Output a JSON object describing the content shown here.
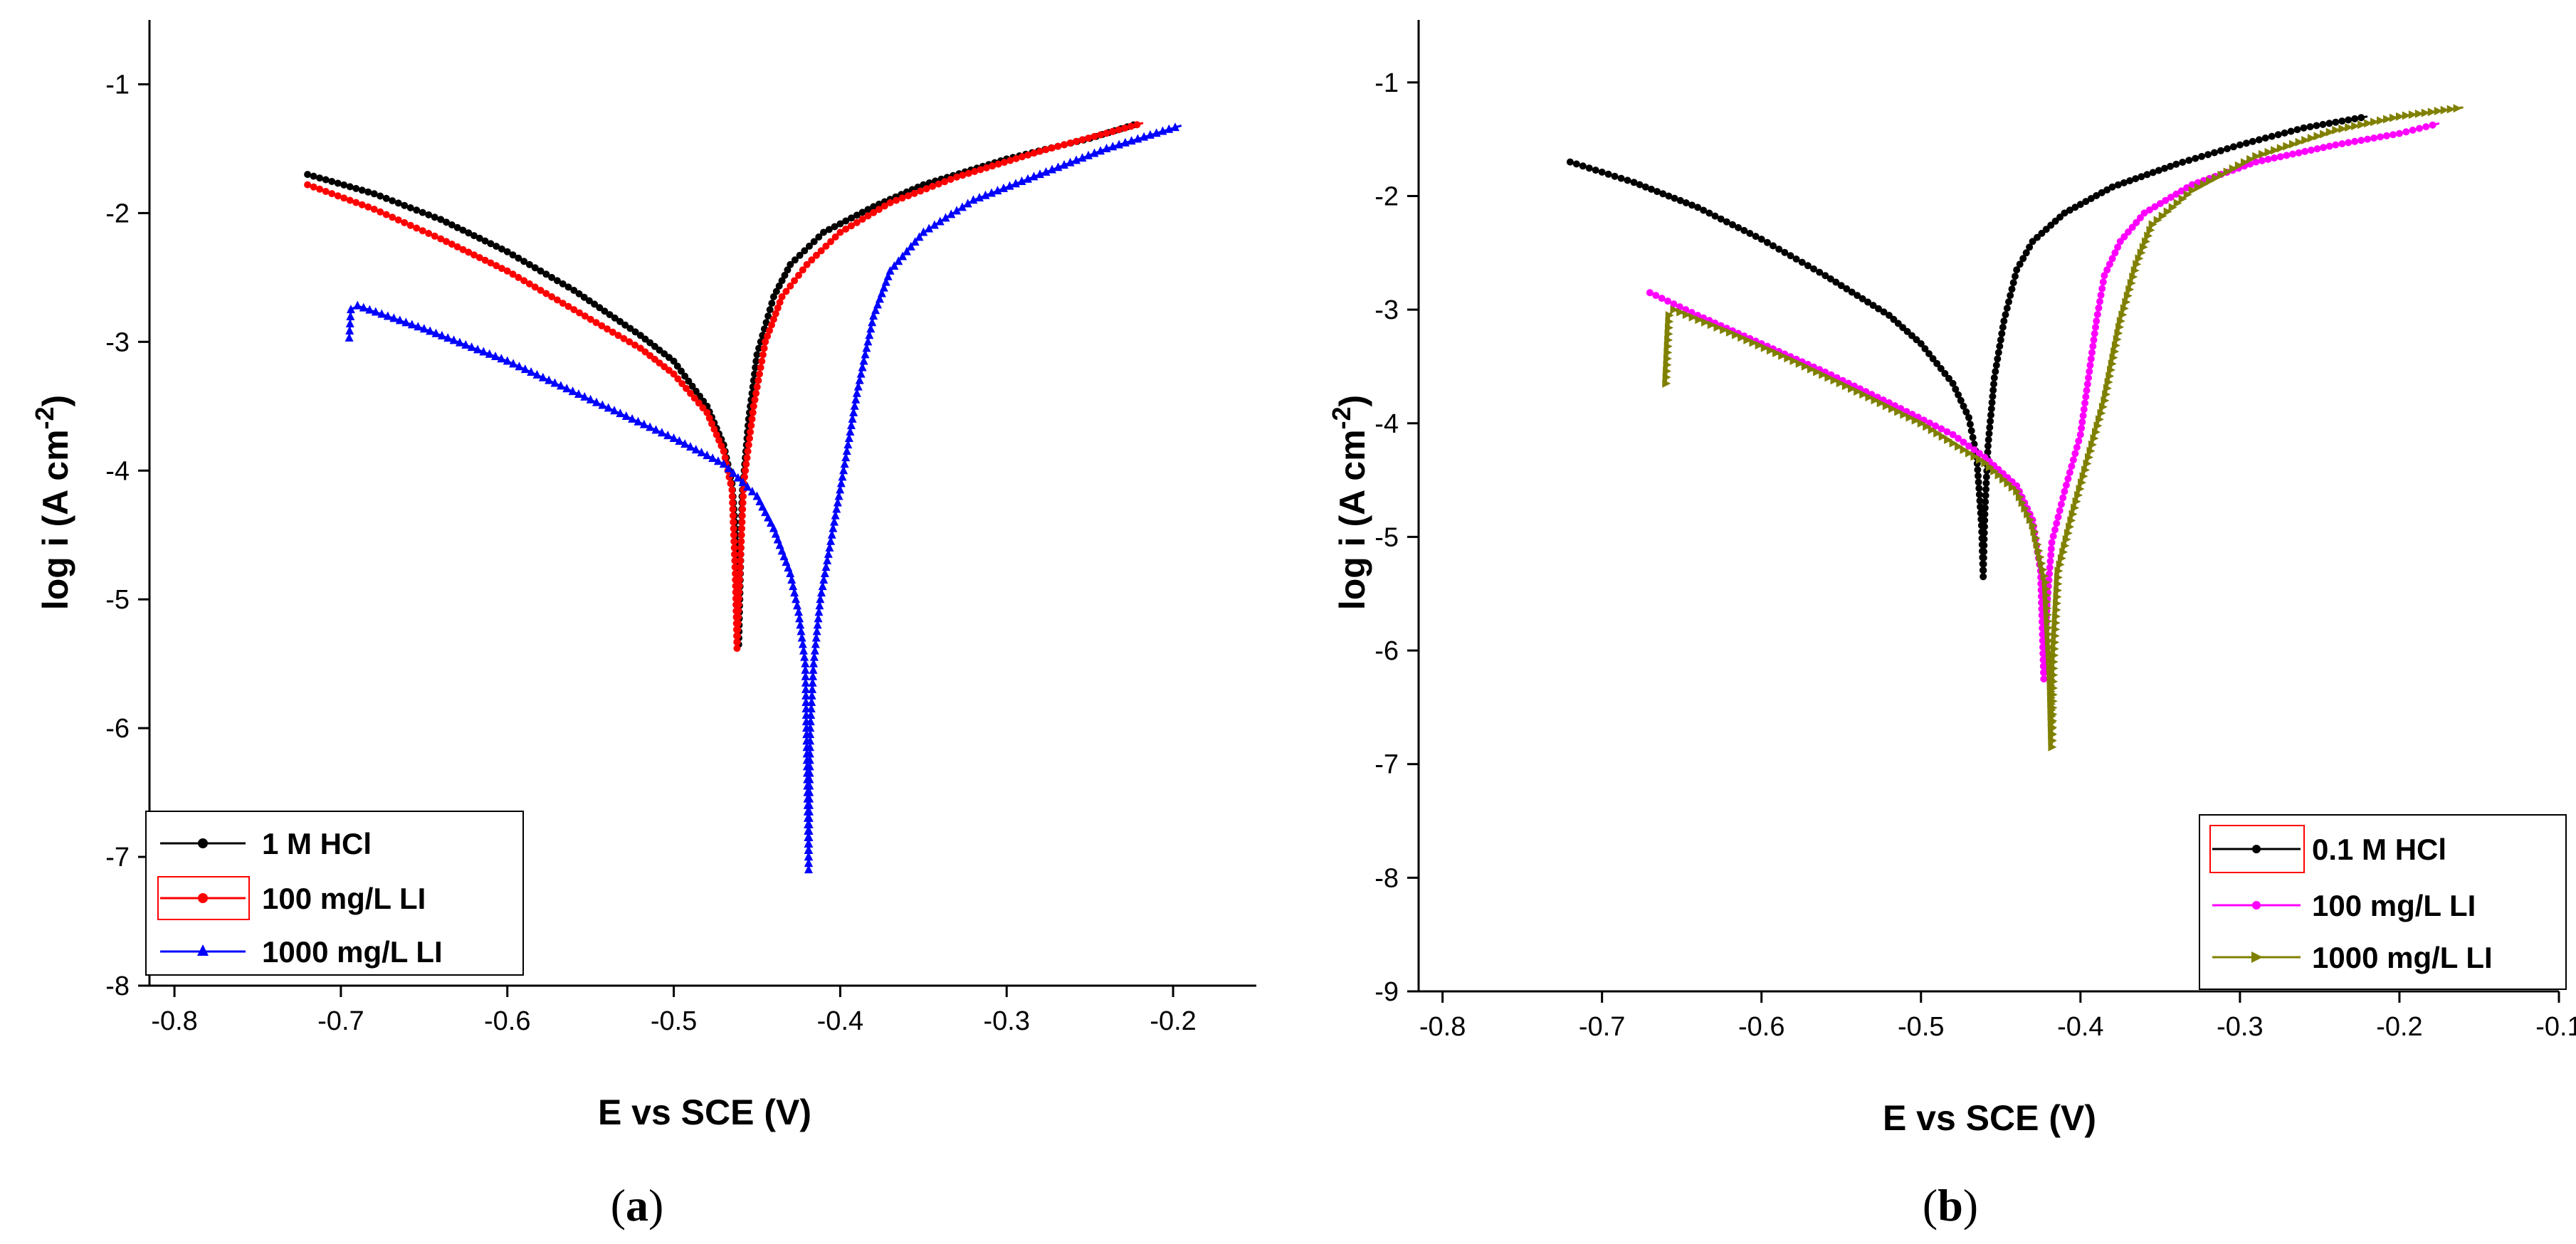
{
  "chart_data": [
    {
      "type": "line",
      "panel": "a",
      "caption_open": "(",
      "caption_letter": "a",
      "caption_close": ")",
      "xlabel": "E vs SCE (V)",
      "ylabel_base": "log i (A cm",
      "ylabel_sup": "-2",
      "ylabel_close": ")",
      "xlim": [
        -0.815,
        -0.15
      ],
      "ylim": [
        -8.0,
        -0.5
      ],
      "xticks": [
        -0.8,
        -0.7,
        -0.6,
        -0.5,
        -0.4,
        -0.3,
        -0.2
      ],
      "xtick_labels": [
        "-0.8",
        "-0.7",
        "-0.6",
        "-0.5",
        "-0.4",
        "-0.3",
        "-0.2"
      ],
      "yticks": [
        -8,
        -7,
        -6,
        -5,
        -4,
        -3,
        -2,
        -1
      ],
      "ytick_labels": [
        "-8",
        "-7",
        "-6",
        "-5",
        "-4",
        "-3",
        "-2",
        "-1"
      ],
      "legend_position": "bottom-left",
      "series": [
        {
          "name": "1 M HCl",
          "color": "#000000",
          "marker": "circle",
          "points": [
            [
              -0.72,
              -1.7
            ],
            [
              -0.68,
              -1.85
            ],
            [
              -0.64,
              -2.05
            ],
            [
              -0.6,
              -2.3
            ],
            [
              -0.56,
              -2.6
            ],
            [
              -0.52,
              -2.95
            ],
            [
              -0.5,
              -3.15
            ],
            [
              -0.48,
              -3.5
            ],
            [
              -0.47,
              -3.8
            ],
            [
              -0.465,
              -4.1
            ],
            [
              -0.462,
              -4.6
            ],
            [
              -0.461,
              -5.35
            ],
            [
              -0.46,
              -4.8
            ],
            [
              -0.459,
              -4.2
            ],
            [
              -0.455,
              -3.6
            ],
            [
              -0.45,
              -3.1
            ],
            [
              -0.44,
              -2.65
            ],
            [
              -0.43,
              -2.4
            ],
            [
              -0.41,
              -2.15
            ],
            [
              -0.38,
              -1.95
            ],
            [
              -0.35,
              -1.78
            ],
            [
              -0.3,
              -1.58
            ],
            [
              -0.25,
              -1.42
            ],
            [
              -0.22,
              -1.3
            ]
          ]
        },
        {
          "name": "100 mg/L LI",
          "color": "#ff0000",
          "marker": "circle",
          "points": [
            [
              -0.72,
              -1.78
            ],
            [
              -0.68,
              -1.97
            ],
            [
              -0.64,
              -2.2
            ],
            [
              -0.6,
              -2.45
            ],
            [
              -0.56,
              -2.75
            ],
            [
              -0.52,
              -3.05
            ],
            [
              -0.5,
              -3.25
            ],
            [
              -0.48,
              -3.55
            ],
            [
              -0.47,
              -3.85
            ],
            [
              -0.465,
              -4.15
            ],
            [
              -0.463,
              -4.8
            ],
            [
              -0.462,
              -5.38
            ],
            [
              -0.46,
              -4.7
            ],
            [
              -0.458,
              -4.1
            ],
            [
              -0.452,
              -3.5
            ],
            [
              -0.445,
              -3.0
            ],
            [
              -0.435,
              -2.65
            ],
            [
              -0.42,
              -2.4
            ],
            [
              -0.4,
              -2.15
            ],
            [
              -0.37,
              -1.92
            ],
            [
              -0.33,
              -1.72
            ],
            [
              -0.28,
              -1.52
            ],
            [
              -0.24,
              -1.38
            ],
            [
              -0.218,
              -1.3
            ]
          ]
        },
        {
          "name": "1000 mg/L LI",
          "color": "#0000ff",
          "marker": "triangle",
          "points": [
            [
              -0.695,
              -2.97
            ],
            [
              -0.694,
              -2.75
            ],
            [
              -0.69,
              -2.72
            ],
            [
              -0.65,
              -2.9
            ],
            [
              -0.6,
              -3.15
            ],
            [
              -0.55,
              -3.45
            ],
            [
              -0.5,
              -3.75
            ],
            [
              -0.47,
              -3.95
            ],
            [
              -0.45,
              -4.2
            ],
            [
              -0.44,
              -4.45
            ],
            [
              -0.43,
              -4.8
            ],
            [
              -0.425,
              -5.1
            ],
            [
              -0.421,
              -5.5
            ],
            [
              -0.42,
              -6.2
            ],
            [
              -0.419,
              -7.1
            ],
            [
              -0.418,
              -6.0
            ],
            [
              -0.416,
              -5.5
            ],
            [
              -0.412,
              -5.0
            ],
            [
              -0.405,
              -4.5
            ],
            [
              -0.398,
              -4.0
            ],
            [
              -0.39,
              -3.4
            ],
            [
              -0.38,
              -2.8
            ],
            [
              -0.37,
              -2.45
            ],
            [
              -0.35,
              -2.15
            ],
            [
              -0.32,
              -1.9
            ],
            [
              -0.28,
              -1.7
            ],
            [
              -0.24,
              -1.5
            ],
            [
              -0.195,
              -1.32
            ]
          ]
        }
      ]
    },
    {
      "type": "line",
      "panel": "b",
      "caption_open": "(",
      "caption_letter": "b",
      "caption_close": ")",
      "xlabel": "E vs SCE (V)",
      "ylabel_base": "log i (A cm",
      "ylabel_sup": "-2",
      "ylabel_close": ")",
      "xlim": [
        -0.815,
        -0.1
      ],
      "ylim": [
        -9.0,
        -0.45
      ],
      "xticks": [
        -0.8,
        -0.7,
        -0.6,
        -0.5,
        -0.4,
        -0.3,
        -0.2,
        -0.1
      ],
      "xtick_labels": [
        "-0.8",
        "-0.7",
        "-0.6",
        "-0.5",
        "-0.4",
        "-0.3",
        "-0.2",
        "-0.1"
      ],
      "yticks": [
        -9,
        -8,
        -7,
        -6,
        -5,
        -4,
        -3,
        -2,
        -1
      ],
      "ytick_labels": [
        "-9",
        "-8",
        "-7",
        "-6",
        "-5",
        "-4",
        "-3",
        "-2",
        "-1"
      ],
      "legend_position": "bottom-right",
      "series": [
        {
          "name": "0.1 M HCl",
          "color": "#000000",
          "marker": "circle",
          "points": [
            [
              -0.72,
              -1.7
            ],
            [
              -0.68,
              -1.88
            ],
            [
              -0.64,
              -2.1
            ],
            [
              -0.6,
              -2.38
            ],
            [
              -0.56,
              -2.7
            ],
            [
              -0.52,
              -3.05
            ],
            [
              -0.5,
              -3.3
            ],
            [
              -0.48,
              -3.65
            ],
            [
              -0.47,
              -3.95
            ],
            [
              -0.465,
              -4.3
            ],
            [
              -0.462,
              -4.9
            ],
            [
              -0.461,
              -5.35
            ],
            [
              -0.46,
              -4.8
            ],
            [
              -0.458,
              -4.2
            ],
            [
              -0.454,
              -3.6
            ],
            [
              -0.448,
              -3.1
            ],
            [
              -0.44,
              -2.65
            ],
            [
              -0.43,
              -2.4
            ],
            [
              -0.41,
              -2.15
            ],
            [
              -0.38,
              -1.92
            ],
            [
              -0.34,
              -1.72
            ],
            [
              -0.3,
              -1.55
            ],
            [
              -0.26,
              -1.4
            ],
            [
              -0.22,
              -1.3
            ]
          ]
        },
        {
          "name": "100 mg/L LI",
          "color": "#ff00ff",
          "marker": "circle",
          "points": [
            [
              -0.67,
              -2.85
            ],
            [
              -0.64,
              -3.05
            ],
            [
              -0.6,
              -3.3
            ],
            [
              -0.56,
              -3.55
            ],
            [
              -0.52,
              -3.82
            ],
            [
              -0.48,
              -4.1
            ],
            [
              -0.46,
              -4.3
            ],
            [
              -0.44,
              -4.55
            ],
            [
              -0.43,
              -4.85
            ],
            [
              -0.425,
              -5.3
            ],
            [
              -0.423,
              -6.25
            ],
            [
              -0.421,
              -5.6
            ],
            [
              -0.418,
              -5.05
            ],
            [
              -0.41,
              -4.6
            ],
            [
              -0.4,
              -4.1
            ],
            [
              -0.395,
              -3.6
            ],
            [
              -0.39,
              -3.1
            ],
            [
              -0.385,
              -2.7
            ],
            [
              -0.375,
              -2.4
            ],
            [
              -0.36,
              -2.15
            ],
            [
              -0.33,
              -1.9
            ],
            [
              -0.29,
              -1.7
            ],
            [
              -0.24,
              -1.55
            ],
            [
              -0.2,
              -1.45
            ],
            [
              -0.175,
              -1.36
            ]
          ]
        },
        {
          "name": "1000 mg/L LI",
          "color": "#808000",
          "marker": "triangle-right",
          "points": [
            [
              -0.66,
              -3.65
            ],
            [
              -0.658,
              -3.05
            ],
            [
              -0.655,
              -3.0
            ],
            [
              -0.62,
              -3.2
            ],
            [
              -0.58,
              -3.45
            ],
            [
              -0.54,
              -3.72
            ],
            [
              -0.5,
              -4.0
            ],
            [
              -0.46,
              -4.35
            ],
            [
              -0.44,
              -4.6
            ],
            [
              -0.43,
              -4.9
            ],
            [
              -0.422,
              -5.4
            ],
            [
              -0.419,
              -6.2
            ],
            [
              -0.418,
              -6.85
            ],
            [
              -0.417,
              -6.1
            ],
            [
              -0.414,
              -5.3
            ],
            [
              -0.405,
              -4.8
            ],
            [
              -0.395,
              -4.3
            ],
            [
              -0.385,
              -3.8
            ],
            [
              -0.375,
              -3.1
            ],
            [
              -0.365,
              -2.6
            ],
            [
              -0.355,
              -2.25
            ],
            [
              -0.33,
              -1.95
            ],
            [
              -0.29,
              -1.65
            ],
            [
              -0.24,
              -1.42
            ],
            [
              -0.2,
              -1.3
            ],
            [
              -0.16,
              -1.22
            ]
          ]
        }
      ]
    }
  ]
}
